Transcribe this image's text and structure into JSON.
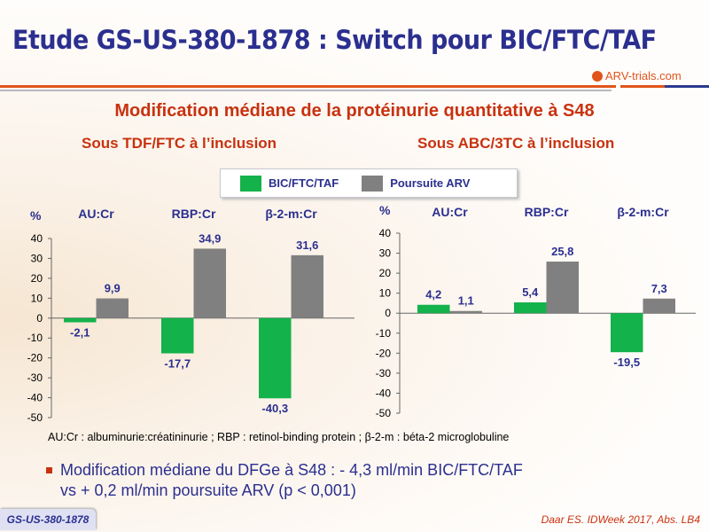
{
  "title": "Etude GS-US-380-1878 : Switch pour BIC/FTC/TAF",
  "logo": "ARV-trials.com",
  "subtitle": "Modification médiane de la protéinurie quantitative à S48",
  "legend": {
    "items": [
      {
        "label": "BIC/FTC/TAF",
        "color": "#13b24a"
      },
      {
        "label": "Poursuite ARV",
        "color": "#808080"
      }
    ]
  },
  "chart_data": [
    {
      "type": "bar",
      "title": "Sous TDF/FTC à l’inclusion",
      "ylabel": "%",
      "ylim": [
        -50,
        40
      ],
      "yticks": [
        "40",
        "30",
        "20",
        "10",
        "0",
        "-10",
        "-20",
        "-30",
        "-40",
        "-50"
      ],
      "categories": [
        "AU:Cr",
        "RBP:Cr",
        "β-2-m:Cr"
      ],
      "series": [
        {
          "name": "BIC/FTC/TAF",
          "values": [
            -2.1,
            -17.7,
            -40.3
          ],
          "labels": [
            "-2,1",
            "-17,7",
            "-40,3"
          ]
        },
        {
          "name": "Poursuite ARV",
          "values": [
            9.9,
            34.9,
            31.6
          ],
          "labels": [
            "9,9",
            "34,9",
            "31,6"
          ]
        }
      ]
    },
    {
      "type": "bar",
      "title": "Sous ABC/3TC à l’inclusion",
      "ylabel": "%",
      "ylim": [
        -50,
        40
      ],
      "yticks": [
        "40",
        "30",
        "20",
        "10",
        "0",
        "-10",
        "-20",
        "-30",
        "-40",
        "-50"
      ],
      "categories": [
        "AU:Cr",
        "RBP:Cr",
        "β-2-m:Cr"
      ],
      "series": [
        {
          "name": "BIC/FTC/TAF",
          "values": [
            4.2,
            5.4,
            -19.5
          ],
          "labels": [
            "4,2",
            "5,4",
            "-19,5"
          ]
        },
        {
          "name": "Poursuite ARV",
          "values": [
            1.1,
            25.8,
            7.3
          ],
          "labels": [
            "1,1",
            "25,8",
            "7,3"
          ]
        }
      ]
    }
  ],
  "footnote": "AU:Cr : albuminurie:créatininurie ; RBP : retinol-binding protein ; β-2-m : béta-2 microglobuline",
  "bullet": {
    "line1": "Modification médiane du DFGe à S48 : - 4,3 ml/min BIC/FTC/TAF",
    "line2": "vs + 0,2 ml/min poursuite ARV (p < 0,001)"
  },
  "study_tag": "GS-US-380-1878",
  "reference": "Daar ES. IDWeek 2017, Abs. LB4"
}
